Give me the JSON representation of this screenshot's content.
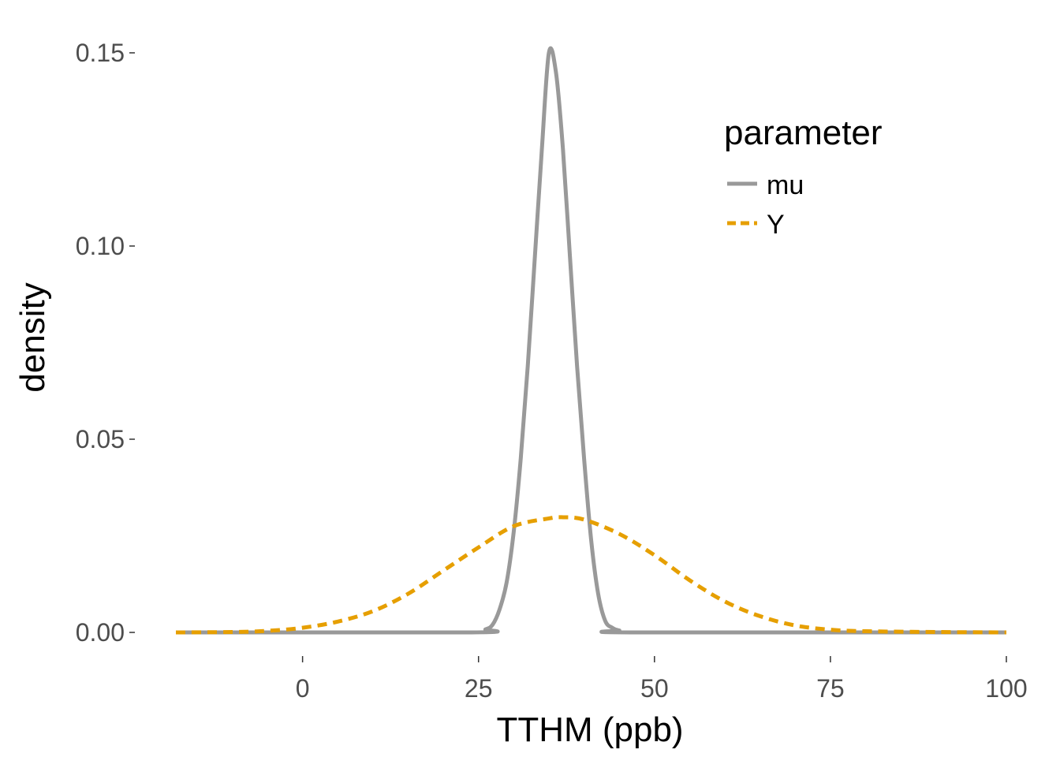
{
  "chart_data": {
    "type": "line",
    "title": "",
    "xlabel": "TTHM (ppb)",
    "ylabel": "density",
    "xlim": [
      -18,
      100
    ],
    "ylim": [
      0,
      0.15
    ],
    "x_ticks": [
      0,
      25,
      50,
      75,
      100
    ],
    "x_tick_labels": [
      "0",
      "25",
      "50",
      "75",
      "100"
    ],
    "y_ticks": [
      0,
      0.05,
      0.1,
      0.15
    ],
    "y_tick_labels": [
      "0.00",
      "0.05",
      "0.10",
      "0.15"
    ],
    "grid": false,
    "legend": {
      "title": "parameter",
      "placement": "top-right",
      "entries": [
        "mu",
        "Y"
      ]
    },
    "series": [
      {
        "name": "mu",
        "color": "#999999",
        "dash": "solid",
        "x": [
          -18,
          24,
          26,
          27,
          28,
          29,
          30,
          31,
          32,
          33,
          34,
          35,
          36,
          37,
          38,
          39,
          40,
          41,
          42,
          43,
          44,
          45,
          47,
          100
        ],
        "y": [
          0,
          0,
          0.0008,
          0.002,
          0.006,
          0.013,
          0.026,
          0.045,
          0.069,
          0.097,
          0.125,
          0.15,
          0.145,
          0.125,
          0.097,
          0.069,
          0.045,
          0.024,
          0.01,
          0.003,
          0.0012,
          0.0005,
          0,
          0
        ]
      },
      {
        "name": "Y",
        "color": "#E69F00",
        "dash": "dashed",
        "x": [
          -18,
          -10,
          -5,
          0,
          5,
          10,
          15,
          20,
          25,
          30,
          35,
          37,
          40,
          45,
          50,
          55,
          60,
          65,
          70,
          75,
          80,
          90,
          100
        ],
        "y": [
          0,
          0.0001,
          0.0004,
          0.0012,
          0.0028,
          0.0055,
          0.01,
          0.016,
          0.022,
          0.0275,
          0.0295,
          0.0298,
          0.0292,
          0.0255,
          0.02,
          0.0135,
          0.008,
          0.0042,
          0.0018,
          0.0007,
          0.0003,
          0.0001,
          0
        ]
      }
    ]
  }
}
